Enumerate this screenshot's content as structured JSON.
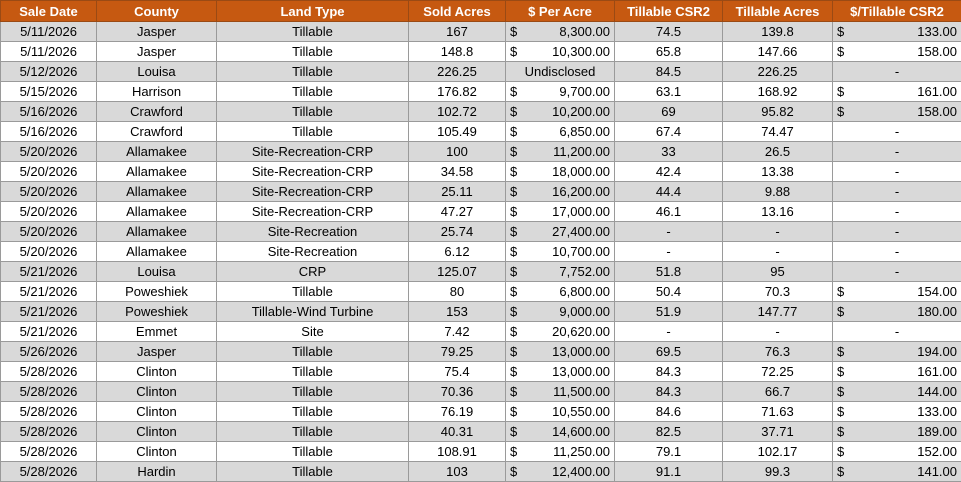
{
  "table": {
    "header": [
      "Sale Date",
      "County",
      "Land Type",
      "Sold Acres",
      "$ Per Acre",
      "Tillable CSR2",
      "Tillable Acres",
      "$/Tillable CSR2"
    ],
    "rows": [
      [
        "5/11/2026",
        "Jasper",
        "Tillable",
        "167",
        [
          "$",
          "8,300.00"
        ],
        "74.5",
        "139.8",
        [
          "$",
          "133.00"
        ]
      ],
      [
        "5/11/2026",
        "Jasper",
        "Tillable",
        "148.8",
        [
          "$",
          "10,300.00"
        ],
        "65.8",
        "147.66",
        [
          "$",
          "158.00"
        ]
      ],
      [
        "5/12/2026",
        "Louisa",
        "Tillable",
        "226.25",
        "Undisclosed",
        "84.5",
        "226.25",
        "-"
      ],
      [
        "5/15/2026",
        "Harrison",
        "Tillable",
        "176.82",
        [
          "$",
          "9,700.00"
        ],
        "63.1",
        "168.92",
        [
          "$",
          "161.00"
        ]
      ],
      [
        "5/16/2026",
        "Crawford",
        "Tillable",
        "102.72",
        [
          "$",
          "10,200.00"
        ],
        "69",
        "95.82",
        [
          "$",
          "158.00"
        ]
      ],
      [
        "5/16/2026",
        "Crawford",
        "Tillable",
        "105.49",
        [
          "$",
          "6,850.00"
        ],
        "67.4",
        "74.47",
        "-"
      ],
      [
        "5/20/2026",
        "Allamakee",
        "Site-Recreation-CRP",
        "100",
        [
          "$",
          "11,200.00"
        ],
        "33",
        "26.5",
        "-"
      ],
      [
        "5/20/2026",
        "Allamakee",
        "Site-Recreation-CRP",
        "34.58",
        [
          "$",
          "18,000.00"
        ],
        "42.4",
        "13.38",
        "-"
      ],
      [
        "5/20/2026",
        "Allamakee",
        "Site-Recreation-CRP",
        "25.11",
        [
          "$",
          "16,200.00"
        ],
        "44.4",
        "9.88",
        "-"
      ],
      [
        "5/20/2026",
        "Allamakee",
        "Site-Recreation-CRP",
        "47.27",
        [
          "$",
          "17,000.00"
        ],
        "46.1",
        "13.16",
        "-"
      ],
      [
        "5/20/2026",
        "Allamakee",
        "Site-Recreation",
        "25.74",
        [
          "$",
          "27,400.00"
        ],
        "-",
        "-",
        "-"
      ],
      [
        "5/20/2026",
        "Allamakee",
        "Site-Recreation",
        "6.12",
        [
          "$",
          "10,700.00"
        ],
        "-",
        "-",
        "-"
      ],
      [
        "5/21/2026",
        "Louisa",
        "CRP",
        "125.07",
        [
          "$",
          "7,752.00"
        ],
        "51.8",
        "95",
        "-"
      ],
      [
        "5/21/2026",
        "Poweshiek",
        "Tillable",
        "80",
        [
          "$",
          "6,800.00"
        ],
        "50.4",
        "70.3",
        [
          "$",
          "154.00"
        ]
      ],
      [
        "5/21/2026",
        "Poweshiek",
        "Tillable-Wind Turbine",
        "153",
        [
          "$",
          "9,000.00"
        ],
        "51.9",
        "147.77",
        [
          "$",
          "180.00"
        ]
      ],
      [
        "5/21/2026",
        "Emmet",
        "Site",
        "7.42",
        [
          "$",
          "20,620.00"
        ],
        "-",
        "-",
        "-"
      ],
      [
        "5/26/2026",
        "Jasper",
        "Tillable",
        "79.25",
        [
          "$",
          "13,000.00"
        ],
        "69.5",
        "76.3",
        [
          "$",
          "194.00"
        ]
      ],
      [
        "5/28/2026",
        "Clinton",
        "Tillable",
        "75.4",
        [
          "$",
          "13,000.00"
        ],
        "84.3",
        "72.25",
        [
          "$",
          "161.00"
        ]
      ],
      [
        "5/28/2026",
        "Clinton",
        "Tillable",
        "70.36",
        [
          "$",
          "11,500.00"
        ],
        "84.3",
        "66.7",
        [
          "$",
          "144.00"
        ]
      ],
      [
        "5/28/2026",
        "Clinton",
        "Tillable",
        "76.19",
        [
          "$",
          "10,550.00"
        ],
        "84.6",
        "71.63",
        [
          "$",
          "133.00"
        ]
      ],
      [
        "5/28/2026",
        "Clinton",
        "Tillable",
        "40.31",
        [
          "$",
          "14,600.00"
        ],
        "82.5",
        "37.71",
        [
          "$",
          "189.00"
        ]
      ],
      [
        "5/28/2026",
        "Clinton",
        "Tillable",
        "108.91",
        [
          "$",
          "11,250.00"
        ],
        "79.1",
        "102.17",
        [
          "$",
          "152.00"
        ]
      ],
      [
        "5/28/2026",
        "Hardin",
        "Tillable",
        "103",
        [
          "$",
          "12,400.00"
        ],
        "91.1",
        "99.3",
        [
          "$",
          "141.00"
        ]
      ]
    ]
  }
}
